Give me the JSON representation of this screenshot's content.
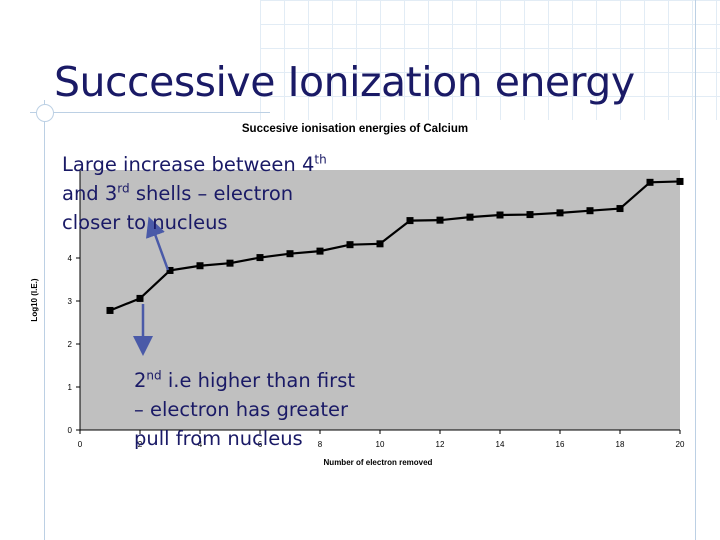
{
  "slide": {
    "title": "Successive Ionization energy",
    "annotation_1": {
      "l1_pre": "Large increase between 4",
      "l1_sup": "th",
      "l2_pre": "and 3",
      "l2_sup": "rd",
      "l2_post": " shells – electron",
      "l3": "closer to nucleus"
    },
    "annotation_2": {
      "l1_pre": "2",
      "l1_sup": "nd",
      "l1_post": " i.e higher than first",
      "l2": "– electron has greater",
      "l3": "pull from nucleus"
    }
  },
  "colors": {
    "title": "#1a1a66",
    "plot_background": "#c0c0c0",
    "series": "#000000",
    "arrow": "#4a5aa8"
  },
  "chart_data": {
    "type": "line",
    "title": "Succesive ionisation energies of Calcium",
    "xlabel": "Number of electron removed",
    "ylabel": "Log10 (I.E.)",
    "xlim": [
      0,
      20
    ],
    "ylim": [
      0,
      6
    ],
    "x_ticks": [
      0,
      2,
      4,
      6,
      8,
      10,
      12,
      14,
      16,
      18,
      20
    ],
    "y_ticks": [
      0,
      1,
      2,
      3,
      4
    ],
    "grid": false,
    "series": [
      {
        "x": [
          1,
          2,
          3,
          4,
          5,
          6,
          7,
          8,
          9,
          10,
          11,
          12,
          13,
          14,
          15,
          16,
          17,
          18,
          19,
          20
        ],
        "y": [
          2.78,
          3.06,
          3.71,
          3.82,
          3.88,
          4.01,
          4.1,
          4.16,
          4.31,
          4.33,
          4.87,
          4.88,
          4.95,
          5.0,
          5.01,
          5.05,
          5.1,
          5.15,
          5.76,
          5.78
        ]
      }
    ]
  }
}
